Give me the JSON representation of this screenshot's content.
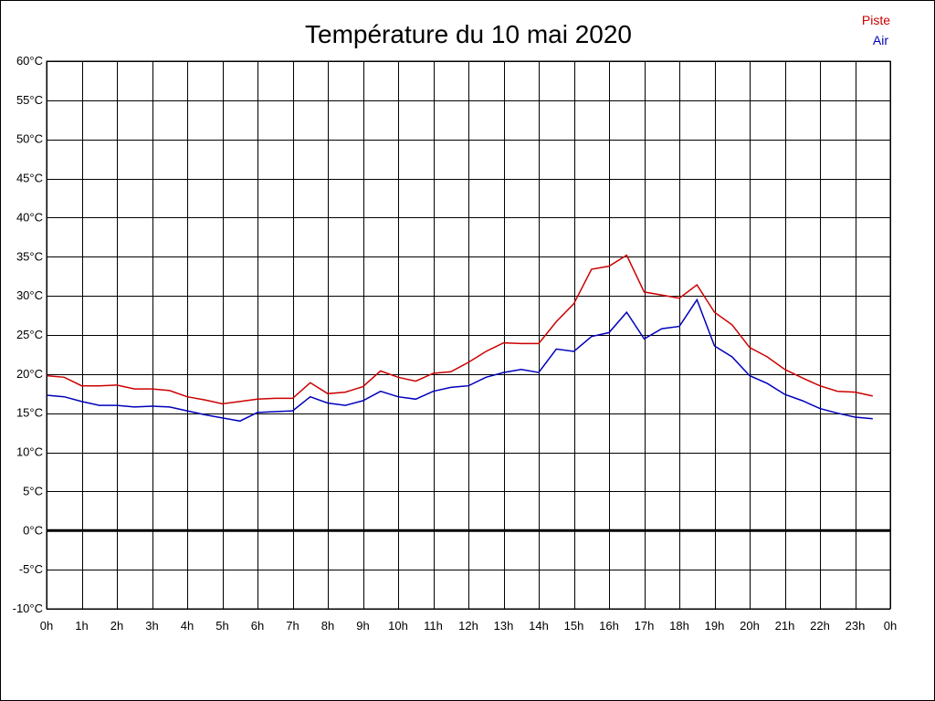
{
  "chart_data": {
    "type": "line",
    "title": "Température du 10 mai 2020",
    "xlabel": "",
    "ylabel": "",
    "x": [
      0,
      0.5,
      1,
      1.5,
      2,
      2.5,
      3,
      3.5,
      4,
      4.5,
      5,
      5.5,
      6,
      6.5,
      7,
      7.5,
      8,
      8.5,
      9,
      9.5,
      10,
      10.5,
      11,
      11.5,
      12,
      12.5,
      13,
      13.5,
      14,
      14.5,
      15,
      15.5,
      16,
      16.5,
      17,
      17.5,
      18,
      18.5,
      19,
      19.5,
      20,
      20.5,
      21,
      21.5,
      22,
      22.5,
      23,
      23.5
    ],
    "x_tick_labels": [
      "0h",
      "1h",
      "2h",
      "3h",
      "4h",
      "5h",
      "6h",
      "7h",
      "8h",
      "9h",
      "10h",
      "11h",
      "12h",
      "13h",
      "14h",
      "15h",
      "16h",
      "17h",
      "18h",
      "19h",
      "20h",
      "21h",
      "22h",
      "23h",
      "0h"
    ],
    "y_tick_labels": [
      "60°C",
      "55°C",
      "50°C",
      "45°C",
      "40°C",
      "35°C",
      "30°C",
      "25°C",
      "20°C",
      "15°C",
      "10°C",
      "5°C",
      "0°C",
      "-5°C",
      "-10°C"
    ],
    "xlim": [
      0,
      24
    ],
    "ylim": [
      -10,
      60
    ],
    "grid": true,
    "zero_line": true,
    "legend_position": "top-right",
    "series": [
      {
        "name": "Piste",
        "color": "#cc0000",
        "values": [
          19.8,
          19.6,
          18.5,
          18.5,
          18.6,
          18.1,
          18.1,
          17.9,
          17.1,
          16.7,
          16.2,
          16.5,
          16.8,
          16.9,
          16.9,
          18.9,
          17.5,
          17.7,
          18.4,
          20.4,
          19.6,
          19.1,
          20.1,
          20.3,
          21.5,
          22.9,
          24.0,
          23.9,
          23.9,
          26.7,
          29.0,
          33.4,
          33.8,
          35.2,
          30.5,
          30.1,
          29.7,
          31.4,
          27.9,
          26.3,
          23.4,
          22.2,
          20.6,
          19.5,
          18.5,
          17.8,
          17.7,
          17.2
        ]
      },
      {
        "name": "Air",
        "color": "#0000bb",
        "values": [
          17.3,
          17.1,
          16.5,
          16.0,
          16.0,
          15.8,
          15.9,
          15.8,
          15.3,
          14.8,
          14.4,
          14.0,
          15.1,
          15.2,
          15.3,
          17.1,
          16.3,
          16.0,
          16.6,
          17.8,
          17.1,
          16.8,
          17.8,
          18.3,
          18.5,
          19.6,
          20.2,
          20.6,
          20.2,
          23.2,
          22.9,
          24.8,
          25.3,
          27.9,
          24.5,
          25.8,
          26.1,
          29.5,
          23.6,
          22.2,
          19.8,
          18.8,
          17.4,
          16.6,
          15.6,
          15.0,
          14.5,
          14.3
        ]
      }
    ]
  }
}
